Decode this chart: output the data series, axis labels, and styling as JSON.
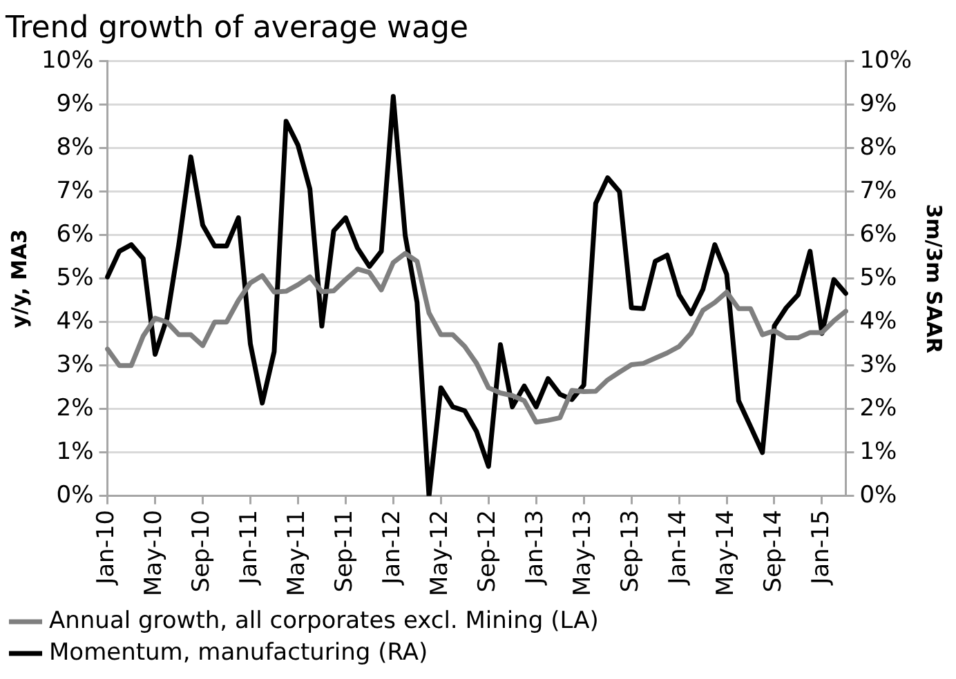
{
  "chart_data": {
    "type": "line",
    "title": "Trend growth of average wage",
    "ylabel": "y/y, MA3",
    "y2label": "3m/3m SAAR",
    "categories": [
      "Jan-10",
      null,
      null,
      null,
      "May-10",
      null,
      null,
      null,
      "Sep-10",
      null,
      null,
      null,
      "Jan-11",
      null,
      null,
      null,
      "May-11",
      null,
      null,
      null,
      "Sep-11",
      null,
      null,
      null,
      "Jan-12",
      null,
      null,
      null,
      "May-12",
      null,
      null,
      null,
      "Sep-12",
      null,
      null,
      null,
      "Jan-13",
      null,
      null,
      null,
      "May-13",
      null,
      null,
      null,
      "Sep-13",
      null,
      null,
      null,
      "Jan-14",
      null,
      null,
      null,
      "May-14",
      null,
      null,
      null,
      "Sep-14",
      null,
      null,
      null,
      "Jan-15",
      null,
      null
    ],
    "series": [
      {
        "name": "Annual growth, all corporates excl. Mining (LA)",
        "color": "#7f7f7f",
        "values": [
          3.38,
          3.0,
          3.0,
          3.68,
          4.09,
          4.0,
          3.71,
          3.71,
          3.46,
          4.0,
          4.0,
          4.5,
          4.9,
          5.07,
          4.69,
          4.71,
          4.86,
          5.04,
          4.7,
          4.72,
          4.98,
          5.22,
          5.14,
          4.74,
          5.37,
          5.58,
          5.4,
          4.21,
          3.71,
          3.71,
          3.44,
          3.05,
          2.49,
          2.37,
          2.31,
          2.19,
          1.7,
          1.74,
          1.8,
          2.43,
          2.4,
          2.41,
          2.67,
          2.85,
          3.02,
          3.05,
          3.17,
          3.29,
          3.44,
          3.74,
          4.27,
          4.45,
          4.69,
          4.31,
          4.31,
          3.71,
          3.8,
          3.64,
          3.64,
          3.76,
          3.76,
          4.03,
          4.25
        ]
      },
      {
        "name": "Momentum, manufacturing (RA)",
        "color": "#000000",
        "axis": "y2",
        "values": [
          5.04,
          5.63,
          5.78,
          5.46,
          3.26,
          4.09,
          5.8,
          7.8,
          6.23,
          5.75,
          5.75,
          6.4,
          3.5,
          2.14,
          3.32,
          8.62,
          8.07,
          7.06,
          3.91,
          6.1,
          6.4,
          5.7,
          5.28,
          5.63,
          9.19,
          6.0,
          4.45,
          0,
          2.49,
          2.05,
          1.96,
          1.48,
          0.68,
          3.48,
          2.05,
          2.53,
          2.05,
          2.7,
          2.34,
          2.22,
          2.55,
          6.73,
          7.32,
          7.0,
          4.33,
          4.31,
          5.4,
          5.54,
          4.63,
          4.19,
          4.75,
          5.78,
          5.1,
          2.19,
          1.6,
          1.0,
          3.91,
          4.33,
          4.63,
          5.63,
          3.74,
          4.98,
          4.66
        ]
      }
    ],
    "ylim": [
      0,
      10
    ],
    "yticks": [
      {
        "value": 0,
        "label": "0%"
      },
      {
        "value": 1,
        "label": "1%"
      },
      {
        "value": 2,
        "label": "2%"
      },
      {
        "value": 3,
        "label": "3%"
      },
      {
        "value": 4,
        "label": "4%"
      },
      {
        "value": 5,
        "label": "5%"
      },
      {
        "value": 6,
        "label": "6%"
      },
      {
        "value": 7,
        "label": "7%"
      },
      {
        "value": 8,
        "label": "8%"
      },
      {
        "value": 9,
        "label": "9%"
      },
      {
        "value": 10,
        "label": "10%"
      }
    ],
    "y2lim": [
      0,
      10
    ],
    "y2ticks": [
      {
        "value": 0,
        "label": "0%"
      },
      {
        "value": 1,
        "label": "1%"
      },
      {
        "value": 2,
        "label": "2%"
      },
      {
        "value": 3,
        "label": "3%"
      },
      {
        "value": 4,
        "label": "4%"
      },
      {
        "value": 5,
        "label": "5%"
      },
      {
        "value": 6,
        "label": "6%"
      },
      {
        "value": 7,
        "label": "7%"
      },
      {
        "value": 8,
        "label": "8%"
      },
      {
        "value": 9,
        "label": "9%"
      },
      {
        "value": 10,
        "label": "10%"
      }
    ],
    "grid": "y",
    "legend": "bottom",
    "marker": "none",
    "line_style": "solid"
  }
}
